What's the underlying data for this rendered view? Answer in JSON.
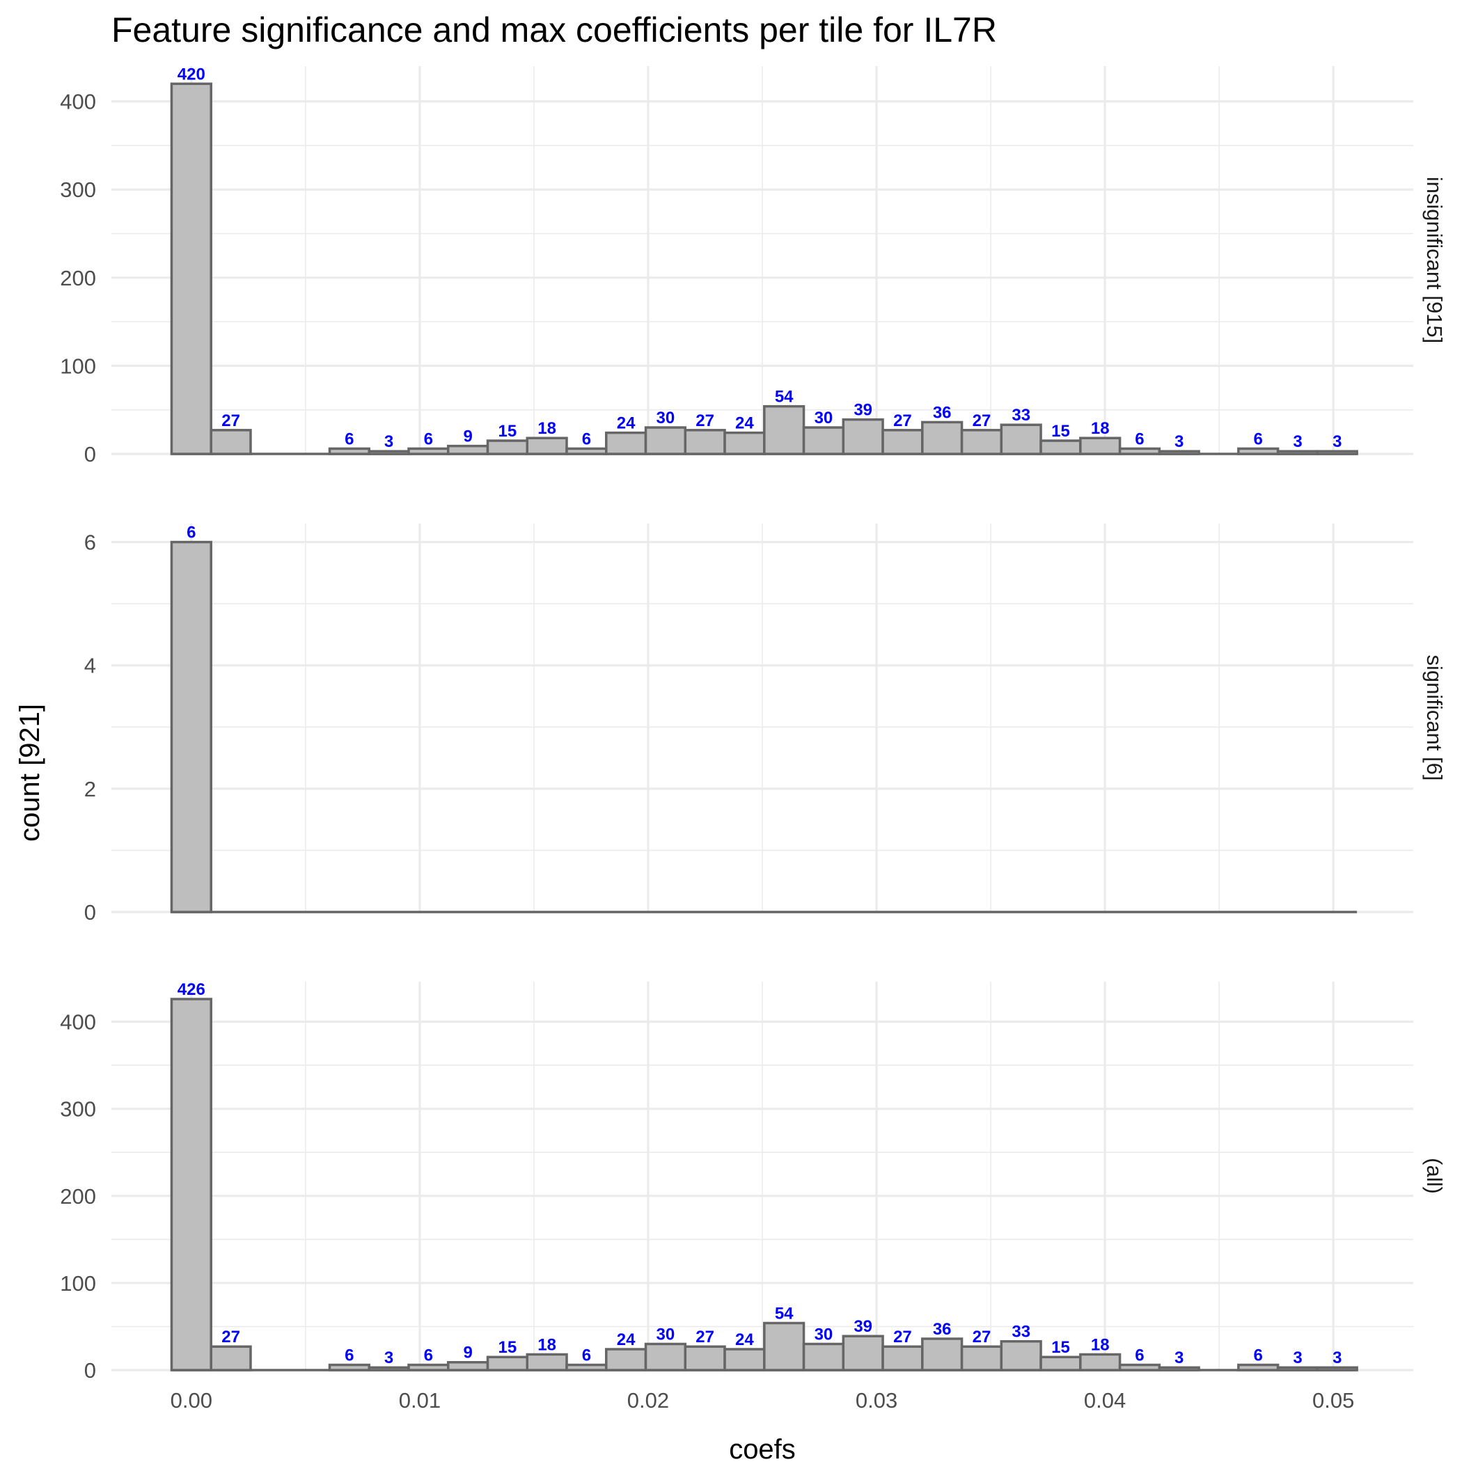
{
  "chart_data": {
    "type": "bar",
    "title": "Feature significance and max coefficients per tile for IL7R",
    "xlabel": "coefs",
    "ylabel": "count [921]",
    "x_ticks": [
      "0.00",
      "0.01",
      "0.02",
      "0.03",
      "0.04",
      "0.05"
    ],
    "x_tick_values": [
      0,
      0.01,
      0.02,
      0.03,
      0.04,
      0.05
    ],
    "xlim": [
      -0.0035,
      0.0535
    ],
    "bin_width": 0.00173,
    "bin_start": -0.000865,
    "grid": true,
    "bar_fill": "#bebebe",
    "bar_outline": "#666666",
    "label_color": "#0000ff",
    "panels": [
      {
        "strip": "insignificant [915]",
        "ylim": [
          0,
          440
        ],
        "y_ticks": [
          0,
          100,
          200,
          300,
          400
        ],
        "y_tick_labels": [
          "0",
          "100",
          "200",
          "300",
          "400"
        ],
        "counts": [
          420,
          27,
          0,
          0,
          6,
          3,
          6,
          9,
          15,
          18,
          6,
          24,
          30,
          27,
          24,
          54,
          30,
          39,
          27,
          36,
          27,
          33,
          15,
          18,
          6,
          3,
          0,
          6,
          3,
          3
        ],
        "labels": [
          "420",
          "27",
          "",
          "",
          "6",
          "3",
          "6",
          "9",
          "15",
          "18",
          "6",
          "24",
          "30",
          "27",
          "24",
          "54",
          "30",
          "39",
          "27",
          "36",
          "27",
          "33",
          "15",
          "18",
          "6",
          "3",
          "",
          "6",
          "3",
          "3"
        ]
      },
      {
        "strip": "significant [6]",
        "ylim": [
          0,
          6.3
        ],
        "y_ticks": [
          0,
          2,
          4,
          6
        ],
        "y_tick_labels": [
          "0",
          "2",
          "4",
          "6"
        ],
        "counts": [
          6,
          0,
          0,
          0,
          0,
          0,
          0,
          0,
          0,
          0,
          0,
          0,
          0,
          0,
          0,
          0,
          0,
          0,
          0,
          0,
          0,
          0,
          0,
          0,
          0,
          0,
          0,
          0,
          0,
          0
        ],
        "labels": [
          "6",
          "",
          "",
          "",
          "",
          "",
          "",
          "",
          "",
          "",
          "",
          "",
          "",
          "",
          "",
          "",
          "",
          "",
          "",
          "",
          "",
          "",
          "",
          "",
          "",
          "",
          "",
          "",
          "",
          ""
        ]
      },
      {
        "strip": "(all)",
        "ylim": [
          0,
          446
        ],
        "y_ticks": [
          0,
          100,
          200,
          300,
          400
        ],
        "y_tick_labels": [
          "0",
          "100",
          "200",
          "300",
          "400"
        ],
        "counts": [
          426,
          27,
          0,
          0,
          6,
          3,
          6,
          9,
          15,
          18,
          6,
          24,
          30,
          27,
          24,
          54,
          30,
          39,
          27,
          36,
          27,
          33,
          15,
          18,
          6,
          3,
          0,
          6,
          3,
          3
        ],
        "labels": [
          "426",
          "27",
          "",
          "",
          "6",
          "3",
          "6",
          "9",
          "15",
          "18",
          "6",
          "24",
          "30",
          "27",
          "24",
          "54",
          "30",
          "39",
          "27",
          "36",
          "27",
          "33",
          "15",
          "18",
          "6",
          "3",
          "",
          "6",
          "3",
          "3"
        ]
      }
    ]
  }
}
